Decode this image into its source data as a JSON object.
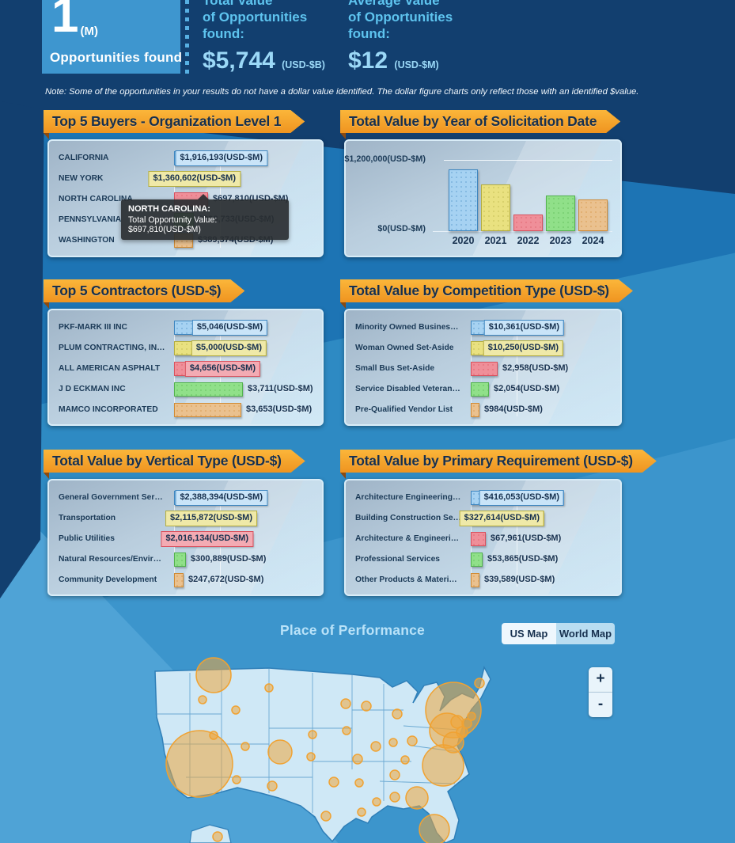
{
  "kpi": {
    "count": {
      "value": "1",
      "unit": "(M)",
      "label": "Opportunities found"
    },
    "total": {
      "line1": "Total Value",
      "line2": "of Opportunities",
      "line3": "found:",
      "value": "$5,744",
      "unit": "(USD-$B)"
    },
    "average": {
      "line1": "Average Value",
      "line2": "of Opportunities",
      "line3": "found:",
      "value": "$12",
      "unit": "(USD-$M)"
    }
  },
  "note": "Note: Some of the opportunities in your results do not have a dollar value identified. The dollar figure charts only reflect those with an identified $value.",
  "tooltip": {
    "title": "NORTH CAROLINA:",
    "body": "Total Opportunity Value: $697,810(USD-$M)"
  },
  "palette": {
    "blue": {
      "fill": "#a6d2f2",
      "border": "#3e86c0",
      "badge": "#c9e4f8"
    },
    "yellow": {
      "fill": "#e9e180",
      "border": "#b4ad3f",
      "badge": "#efe9a8"
    },
    "red": {
      "fill": "#ef8f99",
      "border": "#d9515e",
      "badge": "#f3abb3"
    },
    "green": {
      "fill": "#90e089",
      "border": "#52b24e",
      "badge": "#b5ecb0"
    },
    "orange": {
      "fill": "#eac18f",
      "border": "#d08b35",
      "badge": "#f0d4ab"
    }
  },
  "chart_data": [
    {
      "id": "buyers",
      "type": "bar",
      "orientation": "horizontal",
      "title": "Top 5 Buyers - Organization Level 1",
      "unit": "USD-$M",
      "categories": [
        "CALIFORNIA",
        "NEW YORK",
        "NORTH CAROLINA",
        "PENNSYLVANIA",
        "WASHINGTON"
      ],
      "values": [
        1916193,
        1360602,
        697810,
        398733,
        389374
      ],
      "value_labels": [
        "$1,916,193(USD-$M)",
        "$1,360,602(USD-$M)",
        "$697,810(USD-$M)",
        "$398,733(USD-$M)",
        "$389,374(USD-$M)"
      ],
      "label_inside": [
        true,
        true,
        false,
        false,
        false
      ],
      "colors": [
        "blue",
        "yellow",
        "red",
        "green",
        "orange"
      ]
    },
    {
      "id": "solicitation-year",
      "type": "bar",
      "orientation": "vertical",
      "title": "Total Value by Year of Solicitation Date",
      "unit": "USD-$M",
      "categories": [
        "2020",
        "2021",
        "2022",
        "2023",
        "2024"
      ],
      "values": [
        1040000,
        790000,
        275000,
        600000,
        535000
      ],
      "ylim": [
        0,
        1200000
      ],
      "ytick_labels": [
        "$0(USD-$M)",
        "$1,200,000(USD-$M)"
      ],
      "colors": [
        "blue",
        "yellow",
        "red",
        "green",
        "orange"
      ]
    },
    {
      "id": "contractors",
      "type": "bar",
      "orientation": "horizontal",
      "title": "Top 5 Contractors (USD-$)",
      "unit": "USD-$M",
      "categories": [
        "PKF-MARK III INC",
        "PLUM CONTRACTING, IN…",
        "ALL AMERICAN ASPHALT",
        "J D ECKMAN INC",
        "MAMCO INCORPORATED"
      ],
      "values": [
        5046,
        5000,
        4656,
        3711,
        3653
      ],
      "value_labels": [
        "$5,046(USD-$M)",
        "$5,000(USD-$M)",
        "$4,656(USD-$M)",
        "$3,711(USD-$M)",
        "$3,653(USD-$M)"
      ],
      "label_inside": [
        true,
        true,
        true,
        false,
        false
      ],
      "colors": [
        "blue",
        "yellow",
        "red",
        "green",
        "orange"
      ]
    },
    {
      "id": "competition",
      "type": "bar",
      "orientation": "horizontal",
      "title": "Total Value by Competition Type (USD-$)",
      "unit": "USD-$M",
      "categories": [
        "Minority Owned Busines…",
        "Woman Owned Set-Aside",
        "Small Bus Set-Aside",
        "Service Disabled Veteran…",
        "Pre-Qualified Vendor List"
      ],
      "values": [
        10361,
        10250,
        2958,
        2054,
        984
      ],
      "value_labels": [
        "$10,361(USD-$M)",
        "$10,250(USD-$M)",
        "$2,958(USD-$M)",
        "$2,054(USD-$M)",
        "$984(USD-$M)"
      ],
      "label_inside": [
        true,
        true,
        false,
        false,
        false
      ],
      "colors": [
        "blue",
        "yellow",
        "red",
        "green",
        "orange"
      ]
    },
    {
      "id": "vertical-type",
      "type": "bar",
      "orientation": "horizontal",
      "title": "Total Value by Vertical Type (USD-$)",
      "unit": "USD-$M",
      "categories": [
        "General Government Ser…",
        "Transportation",
        "Public Utilities",
        "Natural Resources/Envir…",
        "Community Development"
      ],
      "values": [
        2388394,
        2115872,
        2016134,
        300889,
        247672
      ],
      "value_labels": [
        "$2,388,394(USD-$M)",
        "$2,115,872(USD-$M)",
        "$2,016,134(USD-$M)",
        "$300,889(USD-$M)",
        "$247,672(USD-$M)"
      ],
      "label_inside": [
        true,
        true,
        true,
        false,
        false
      ],
      "colors": [
        "blue",
        "yellow",
        "red",
        "green",
        "orange"
      ]
    },
    {
      "id": "primary-requirement",
      "type": "bar",
      "orientation": "horizontal",
      "title": "Total Value by Primary Requirement (USD-$)",
      "unit": "USD-$M",
      "categories": [
        "Architecture Engineering…",
        "Building Construction Se…",
        "Architecture & Engineeri…",
        "Professional Services",
        "Other Products & Materi…"
      ],
      "values": [
        416053,
        327614,
        67961,
        53865,
        39589
      ],
      "value_labels": [
        "$416,053(USD-$M)",
        "$327,614(USD-$M)",
        "$67,961(USD-$M)",
        "$53,865(USD-$M)",
        "$39,589(USD-$M)"
      ],
      "label_inside": [
        true,
        true,
        false,
        false,
        false
      ],
      "colors": [
        "blue",
        "yellow",
        "red",
        "green",
        "orange"
      ]
    }
  ],
  "map": {
    "title": "Place of Performance",
    "toggle": {
      "us": "US Map",
      "world": "World Map"
    },
    "zoom_in": "+",
    "zoom_out": "-",
    "bubble_color": "#eea63c",
    "bubbles": [
      [
        90,
        31,
        22
      ],
      [
        76,
        62,
        5
      ],
      [
        160,
        47,
        5
      ],
      [
        118,
        75,
        5
      ],
      [
        72,
        143,
        42
      ],
      [
        90,
        107,
        5
      ],
      [
        130,
        121,
        5
      ],
      [
        119,
        163,
        5
      ],
      [
        164,
        171,
        6
      ],
      [
        174,
        128,
        15
      ],
      [
        215,
        106,
        5
      ],
      [
        213,
        134,
        5
      ],
      [
        257,
        67,
        6
      ],
      [
        258,
        101,
        5
      ],
      [
        272,
        137,
        6
      ],
      [
        283,
        70,
        6
      ],
      [
        295,
        121,
        6
      ],
      [
        322,
        80,
        6
      ],
      [
        317,
        116,
        5
      ],
      [
        341,
        114,
        6
      ],
      [
        332,
        138,
        5
      ],
      [
        319,
        157,
        6
      ],
      [
        242,
        166,
        6
      ],
      [
        274,
        167,
        5
      ],
      [
        277,
        204,
        5
      ],
      [
        296,
        191,
        5
      ],
      [
        319,
        185,
        6
      ],
      [
        347,
        186,
        14
      ],
      [
        369,
        226,
        19
      ],
      [
        232,
        209,
        6
      ],
      [
        426,
        41,
        6
      ],
      [
        393,
        75,
        35
      ],
      [
        385,
        101,
        22
      ],
      [
        398,
        90,
        8
      ],
      [
        404,
        103,
        7
      ],
      [
        410,
        92,
        6
      ],
      [
        416,
        83,
        5
      ],
      [
        393,
        116,
        13
      ],
      [
        380,
        145,
        26
      ],
      [
        95,
        235,
        6
      ]
    ]
  }
}
